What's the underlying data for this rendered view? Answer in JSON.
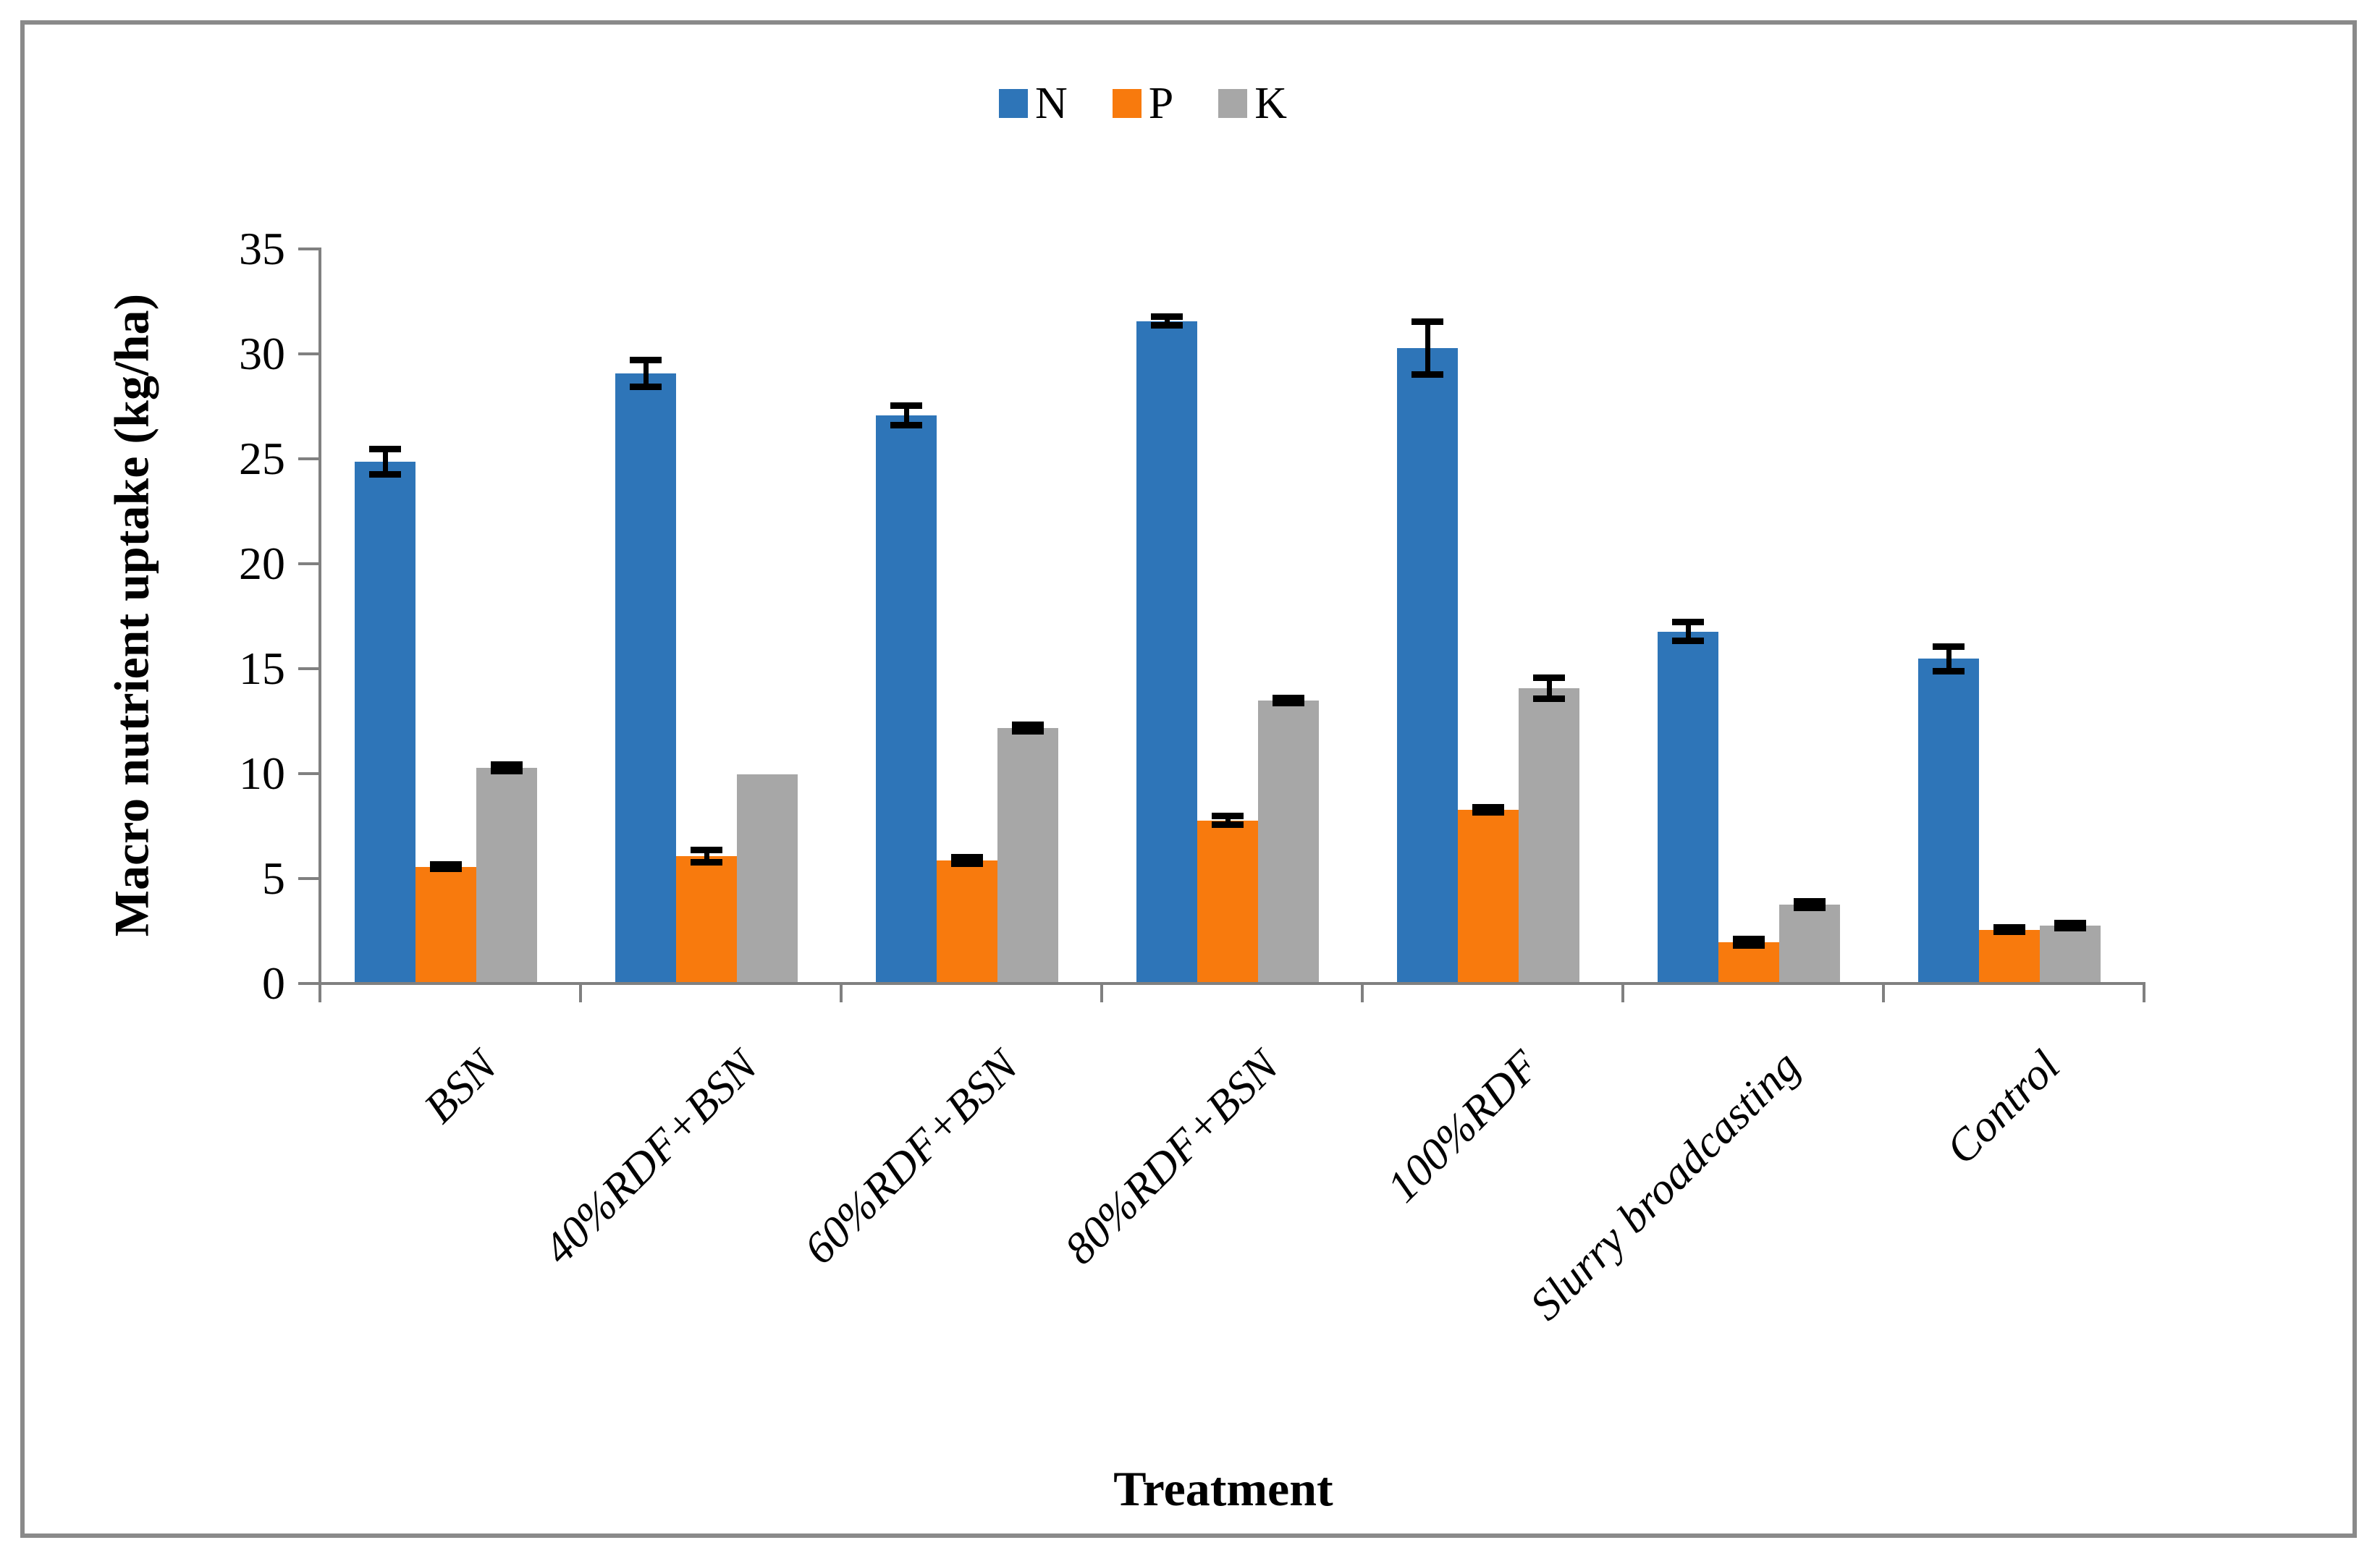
{
  "figure": {
    "border_color": "#8a8a8a",
    "background": "#ffffff",
    "axis_color": "#808080",
    "error_bar_color": "#000000"
  },
  "legend": {
    "position": "top-center",
    "items": [
      {
        "label": "N",
        "color": "#2E75B8"
      },
      {
        "label": "P",
        "color": "#F87A0D"
      },
      {
        "label": "K",
        "color": "#A7A7A7"
      }
    ]
  },
  "chart_data": {
    "type": "bar",
    "title": "",
    "xlabel": "Treatment",
    "ylabel": "Macro nutrient uptake (kg/ha)",
    "ylim": [
      0,
      35
    ],
    "yticks": [
      0,
      5,
      10,
      15,
      20,
      25,
      30,
      35
    ],
    "grid": false,
    "legend_position": "top-center",
    "categories": [
      "BSN",
      "40%RDF+BSN",
      "60%RDF+BSN",
      "80%RDF+BSN",
      "100%RDF",
      "Slurry broadcasting",
      "Control"
    ],
    "series": [
      {
        "name": "N",
        "color": "#2E75B8",
        "values": [
          24.8,
          29.0,
          27.0,
          31.5,
          30.2,
          16.7,
          15.4
        ],
        "errors": [
          0.6,
          0.65,
          0.45,
          0.2,
          1.25,
          0.45,
          0.6
        ]
      },
      {
        "name": "P",
        "color": "#F87A0D",
        "values": [
          5.5,
          6.0,
          5.8,
          7.7,
          8.2,
          1.9,
          2.5
        ],
        "errors": [
          0.12,
          0.3,
          0.15,
          0.2,
          0.12,
          0.15,
          0.12
        ]
      },
      {
        "name": "K",
        "color": "#A7A7A7",
        "values": [
          10.2,
          9.9,
          12.1,
          13.4,
          14.0,
          3.7,
          2.7
        ],
        "errors": [
          0.15,
          0,
          0.15,
          0.12,
          0.5,
          0.15,
          0.12
        ]
      }
    ]
  }
}
